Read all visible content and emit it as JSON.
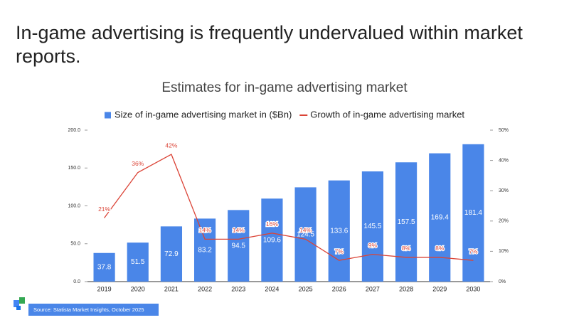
{
  "heading": "In-game advertising is frequently undervalued within market reports.",
  "source": "Source: Statista Market Insights, October  2025",
  "chart_data": {
    "type": "bar",
    "title": "Estimates for in-game advertising market",
    "categories": [
      "2019",
      "2020",
      "2021",
      "2022",
      "2023",
      "2024",
      "2025",
      "2026",
      "2027",
      "2028",
      "2029",
      "2030"
    ],
    "series": [
      {
        "name": "Size of in-game advertising market in ($Bn)",
        "type": "bar",
        "color": "#4a86e8",
        "values": [
          37.8,
          51.5,
          72.9,
          83.2,
          94.5,
          109.6,
          124.5,
          133.6,
          145.5,
          157.5,
          169.4,
          181.4
        ]
      },
      {
        "name": "Growth of in-game advertising market",
        "type": "line",
        "axis": "y2",
        "color": "#db4437",
        "values": [
          21,
          36,
          42,
          14,
          14,
          16,
          14,
          7,
          9,
          8,
          8,
          7
        ],
        "value_labels": [
          "21%",
          "36%",
          "42%",
          "14%",
          "14%",
          "16%",
          "14%",
          "7%",
          "9%",
          "8%",
          "8%",
          "7%"
        ]
      }
    ],
    "ylim": [
      0,
      200
    ],
    "yticks": [
      {
        "value": 0,
        "label": "0.0"
      },
      {
        "value": 50,
        "label": "50.0"
      },
      {
        "value": 100,
        "label": "100.0"
      },
      {
        "value": 150,
        "label": "150.0"
      },
      {
        "value": 200,
        "label": "200.0"
      }
    ],
    "y2lim": [
      0,
      50
    ],
    "y2ticks": [
      {
        "value": 0,
        "label": "0%"
      },
      {
        "value": 10,
        "label": "10%"
      },
      {
        "value": 20,
        "label": "20%"
      },
      {
        "value": 30,
        "label": "30%"
      },
      {
        "value": 40,
        "label": "40%"
      },
      {
        "value": 50,
        "label": "50%"
      }
    ],
    "legend": "top"
  }
}
